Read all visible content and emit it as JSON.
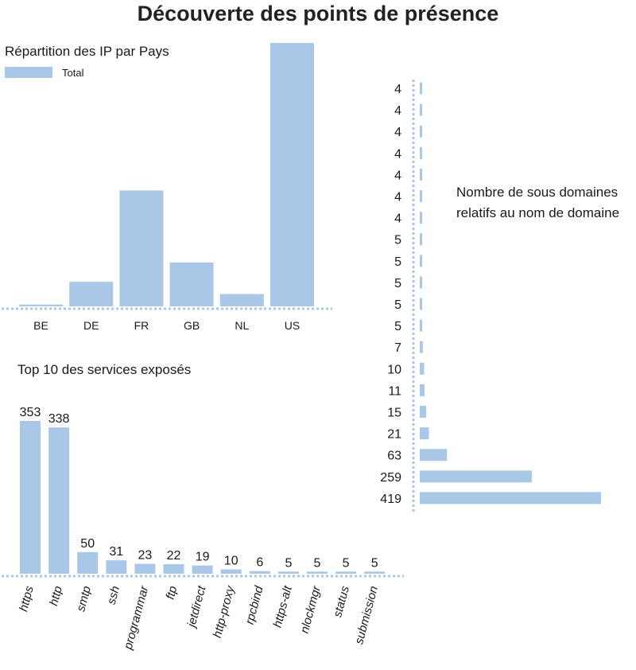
{
  "title": "Découverte des points de présence",
  "colors": {
    "bar": "#a9c8e7",
    "axis": "#a9c8e7"
  },
  "chart_data": [
    {
      "type": "bar",
      "title": "Répartition des IP par Pays",
      "legend": "Total",
      "categories": [
        "BE",
        "DE",
        "FR",
        "GB",
        "NL",
        "US"
      ],
      "series": [
        {
          "name": "Total",
          "values": [
            1,
            14,
            66,
            25,
            7,
            150
          ]
        }
      ],
      "ylim": [
        0,
        150
      ],
      "grid": false,
      "legend_position": "top-left"
    },
    {
      "type": "bar",
      "orientation": "horizontal",
      "title": "Nombre de sous domaines relatifs au nom de domaine",
      "title_lines": [
        "Nombre de sous domaines",
        "relatifs au nom de domaine"
      ],
      "categories": [
        "4",
        "4",
        "4",
        "4",
        "4",
        "4",
        "4",
        "5",
        "5",
        "5",
        "5",
        "5",
        "7",
        "10",
        "11",
        "15",
        "21",
        "63",
        "259",
        "419"
      ],
      "values": [
        4,
        4,
        4,
        4,
        4,
        4,
        4,
        5,
        5,
        5,
        5,
        5,
        7,
        10,
        11,
        15,
        21,
        63,
        259,
        419
      ],
      "xlim": [
        0,
        419
      ],
      "grid": false
    },
    {
      "type": "bar",
      "title": "Top 10 des services exposés",
      "categories": [
        "https",
        "http",
        "smtp",
        "ssh",
        "programmar",
        "ftp",
        "jetdirect",
        "http-proxy",
        "rpcbind",
        "https-alt",
        "nlockmgr",
        "status",
        "submission"
      ],
      "values": [
        353,
        338,
        50,
        31,
        23,
        22,
        19,
        10,
        6,
        5,
        5,
        5,
        5
      ],
      "data_labels": [
        "353",
        "338",
        "50",
        "31",
        "23",
        "22",
        "19",
        "10",
        "6",
        "5",
        "5",
        "5",
        "5"
      ],
      "ylim": [
        0,
        353
      ],
      "grid": false
    }
  ]
}
